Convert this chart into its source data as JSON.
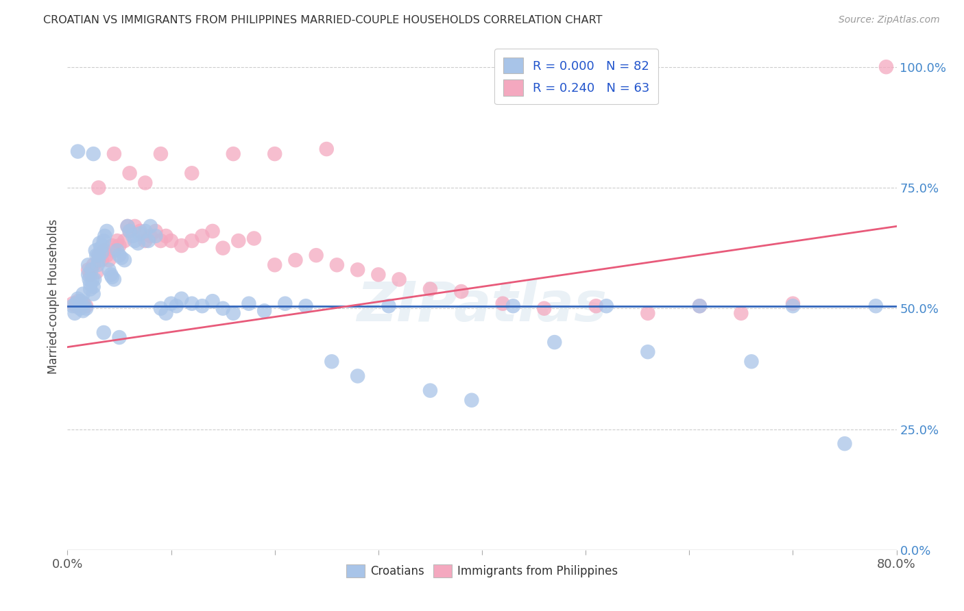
{
  "title": "CROATIAN VS IMMIGRANTS FROM PHILIPPINES MARRIED-COUPLE HOUSEHOLDS CORRELATION CHART",
  "source": "Source: ZipAtlas.com",
  "xlabel_ticks": [
    "0.0%",
    "",
    "",
    "",
    "",
    "",
    "",
    "",
    "80.0%"
  ],
  "xlabel_values": [
    0.0,
    0.1,
    0.2,
    0.3,
    0.4,
    0.5,
    0.6,
    0.7,
    0.8
  ],
  "ylabel_ticks": [
    "100.0%",
    "75.0%",
    "50.0%",
    "25.0%",
    "0.0%"
  ],
  "ylabel_values": [
    1.0,
    0.75,
    0.5,
    0.25,
    0.0
  ],
  "xmin": 0.0,
  "xmax": 0.8,
  "ymin": 0.0,
  "ymax": 1.05,
  "blue_R": 0.0,
  "blue_N": 82,
  "pink_R": 0.24,
  "pink_N": 63,
  "blue_color": "#a8c4e8",
  "pink_color": "#f4a8bf",
  "blue_line_color": "#3366bb",
  "pink_line_color": "#e85a7a",
  "grid_color": "#cccccc",
  "watermark": "ZIPatlas",
  "blue_line_y": 0.505,
  "pink_line_x0": 0.0,
  "pink_line_y0": 0.42,
  "pink_line_x1": 0.8,
  "pink_line_y1": 0.67,
  "blue_scatter_x": [
    0.005,
    0.007,
    0.008,
    0.01,
    0.012,
    0.013,
    0.015,
    0.015,
    0.016,
    0.018,
    0.02,
    0.02,
    0.021,
    0.022,
    0.022,
    0.023,
    0.024,
    0.025,
    0.025,
    0.026,
    0.027,
    0.028,
    0.029,
    0.03,
    0.03,
    0.031,
    0.032,
    0.033,
    0.034,
    0.035,
    0.036,
    0.038,
    0.04,
    0.042,
    0.043,
    0.045,
    0.048,
    0.05,
    0.052,
    0.055,
    0.058,
    0.06,
    0.063,
    0.065,
    0.068,
    0.07,
    0.075,
    0.078,
    0.08,
    0.085,
    0.09,
    0.095,
    0.1,
    0.105,
    0.11,
    0.12,
    0.13,
    0.14,
    0.15,
    0.16,
    0.175,
    0.19,
    0.21,
    0.23,
    0.255,
    0.28,
    0.31,
    0.35,
    0.39,
    0.43,
    0.47,
    0.52,
    0.56,
    0.61,
    0.66,
    0.7,
    0.75,
    0.78,
    0.01,
    0.025,
    0.035,
    0.05
  ],
  "blue_scatter_y": [
    0.505,
    0.49,
    0.51,
    0.52,
    0.5,
    0.515,
    0.53,
    0.495,
    0.51,
    0.5,
    0.59,
    0.57,
    0.56,
    0.55,
    0.54,
    0.58,
    0.56,
    0.545,
    0.53,
    0.56,
    0.62,
    0.61,
    0.59,
    0.61,
    0.6,
    0.635,
    0.625,
    0.615,
    0.63,
    0.64,
    0.65,
    0.66,
    0.58,
    0.57,
    0.565,
    0.56,
    0.62,
    0.61,
    0.605,
    0.6,
    0.67,
    0.66,
    0.65,
    0.64,
    0.635,
    0.655,
    0.66,
    0.64,
    0.67,
    0.65,
    0.5,
    0.49,
    0.51,
    0.505,
    0.52,
    0.51,
    0.505,
    0.515,
    0.5,
    0.49,
    0.51,
    0.495,
    0.51,
    0.505,
    0.39,
    0.36,
    0.505,
    0.33,
    0.31,
    0.505,
    0.43,
    0.505,
    0.41,
    0.505,
    0.39,
    0.505,
    0.22,
    0.505,
    0.825,
    0.82,
    0.45,
    0.44
  ],
  "pink_scatter_x": [
    0.005,
    0.008,
    0.01,
    0.012,
    0.015,
    0.018,
    0.02,
    0.022,
    0.025,
    0.028,
    0.03,
    0.033,
    0.035,
    0.038,
    0.04,
    0.043,
    0.045,
    0.048,
    0.05,
    0.055,
    0.058,
    0.06,
    0.065,
    0.07,
    0.075,
    0.08,
    0.085,
    0.09,
    0.095,
    0.1,
    0.11,
    0.12,
    0.13,
    0.14,
    0.15,
    0.165,
    0.18,
    0.2,
    0.22,
    0.24,
    0.26,
    0.28,
    0.3,
    0.32,
    0.35,
    0.38,
    0.42,
    0.46,
    0.51,
    0.56,
    0.61,
    0.65,
    0.7,
    0.03,
    0.045,
    0.06,
    0.075,
    0.09,
    0.12,
    0.16,
    0.2,
    0.25,
    0.79
  ],
  "pink_scatter_y": [
    0.51,
    0.505,
    0.515,
    0.505,
    0.51,
    0.505,
    0.58,
    0.57,
    0.59,
    0.575,
    0.61,
    0.6,
    0.62,
    0.61,
    0.6,
    0.63,
    0.62,
    0.64,
    0.63,
    0.64,
    0.67,
    0.66,
    0.67,
    0.66,
    0.64,
    0.65,
    0.66,
    0.64,
    0.65,
    0.64,
    0.63,
    0.64,
    0.65,
    0.66,
    0.625,
    0.64,
    0.645,
    0.59,
    0.6,
    0.61,
    0.59,
    0.58,
    0.57,
    0.56,
    0.54,
    0.535,
    0.51,
    0.5,
    0.505,
    0.49,
    0.505,
    0.49,
    0.51,
    0.75,
    0.82,
    0.78,
    0.76,
    0.82,
    0.78,
    0.82,
    0.82,
    0.83,
    1.0
  ]
}
